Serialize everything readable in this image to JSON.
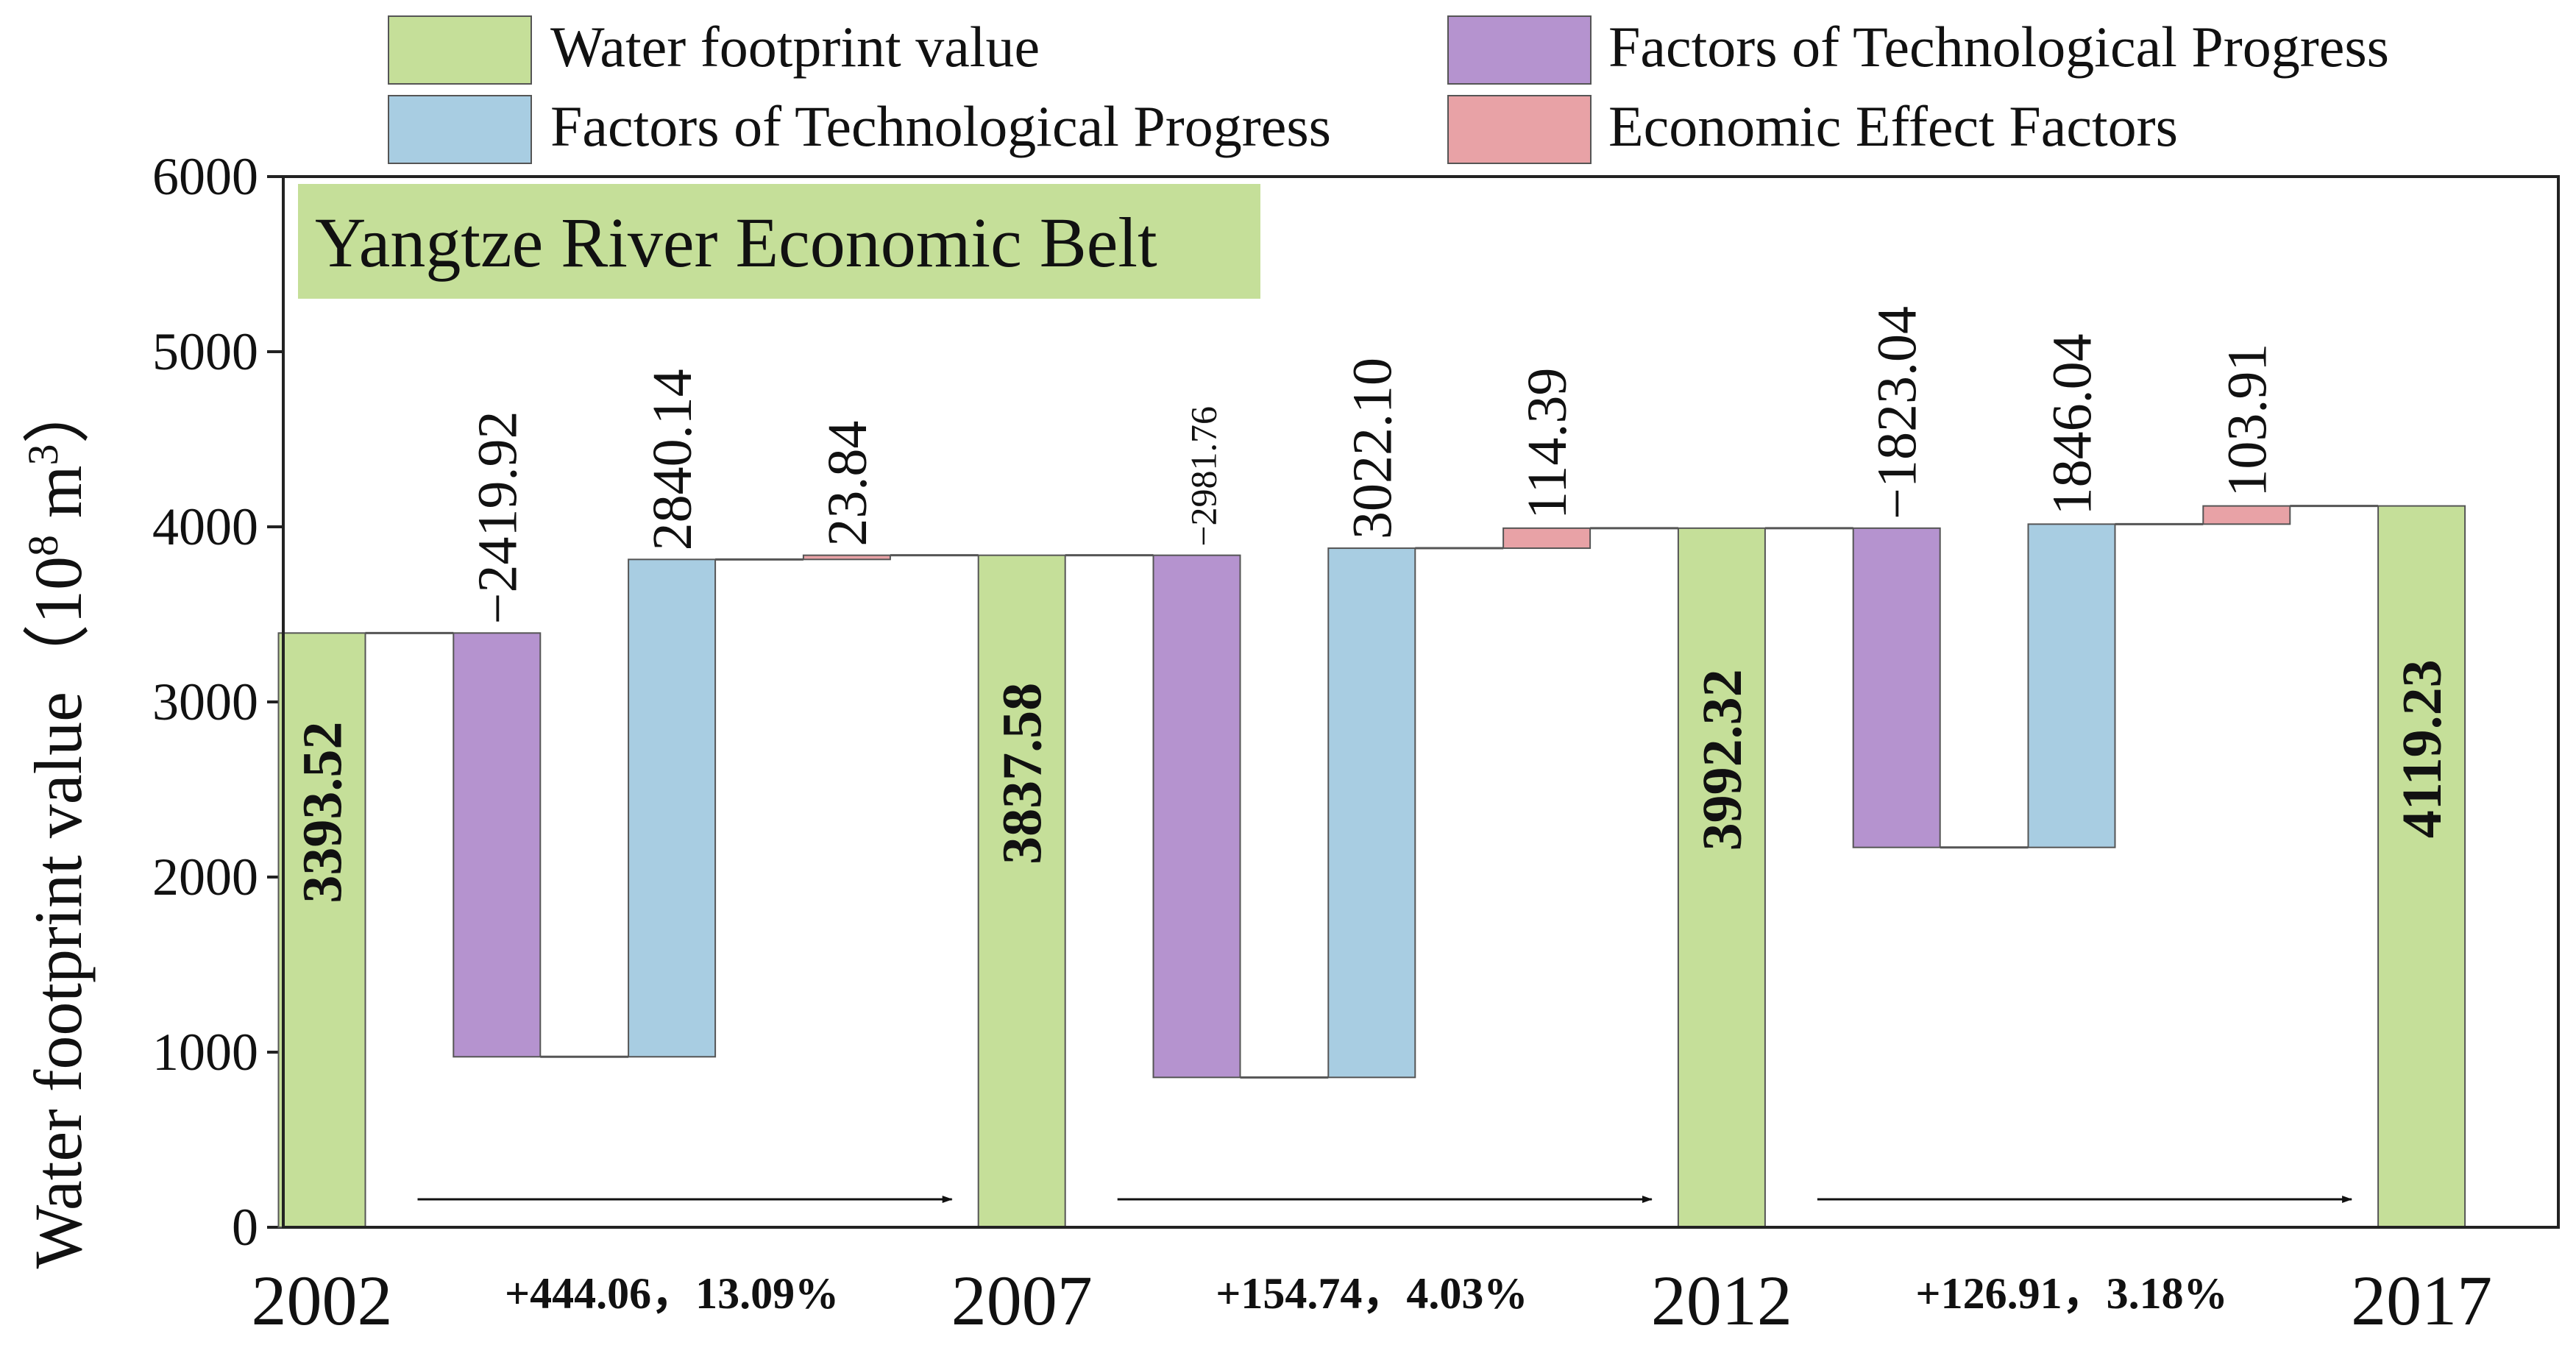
{
  "chart_data": {
    "type": "waterfall",
    "title": "Yangtze River Economic Belt",
    "ylabel": "Water footprint value",
    "yunit_prefix": "（10",
    "yunit_exp": "8",
    "yunit_mid": " m",
    "yunit_exp2": "3",
    "yunit_suffix": "）",
    "ylim": [
      0,
      6000
    ],
    "yticks": [
      0,
      1000,
      2000,
      3000,
      4000,
      5000,
      6000
    ],
    "ytick_labels": [
      "0",
      "1000",
      "2000",
      "3000",
      "4000",
      "5000",
      "6000"
    ],
    "legend": {
      "position": "top",
      "entries": [
        {
          "key": "wf",
          "label": "Water footprint value"
        },
        {
          "key": "tp1",
          "label": "Factors of Technological Progress"
        },
        {
          "key": "tp2",
          "label": "Factors of Technological Progress"
        },
        {
          "key": "econ",
          "label": "Economic Effect Factors"
        }
      ]
    },
    "colors": {
      "wf": "#c5df99",
      "tp1": "#b593cf",
      "tp2": "#a8cde2",
      "econ": "#e8a2a6",
      "stroke": "#555555",
      "title_bg": "#c5df99"
    },
    "years": [
      {
        "label": "2002",
        "value": 3393.52,
        "value_label": "3393.52"
      },
      {
        "label": "2007",
        "value": 3837.58,
        "value_label": "3837.58"
      },
      {
        "label": "2012",
        "value": 3992.32,
        "value_label": "3992.32"
      },
      {
        "label": "2017",
        "value": 4119.23,
        "value_label": "4119.23"
      }
    ],
    "periods": [
      {
        "change_label": "+444.06，13.09%",
        "factors": [
          {
            "key": "tp1",
            "value": -2419.92,
            "label": "−2419.92"
          },
          {
            "key": "tp2",
            "value": 2840.14,
            "label": "2840.14"
          },
          {
            "key": "econ",
            "value": 23.84,
            "label": "23.84"
          }
        ]
      },
      {
        "change_label": "+154.74，4.03%",
        "factors": [
          {
            "key": "tp1",
            "value": -2981.76,
            "label": "−2981.76"
          },
          {
            "key": "tp2",
            "value": 3022.1,
            "label": "3022.10"
          },
          {
            "key": "econ",
            "value": 114.39,
            "label": "114.39"
          }
        ]
      },
      {
        "change_label": "+126.91，3.18%",
        "factors": [
          {
            "key": "tp1",
            "value": -1823.04,
            "label": "−1823.04"
          },
          {
            "key": "tp2",
            "value": 1846.04,
            "label": "1846.04"
          },
          {
            "key": "econ",
            "value": 103.91,
            "label": "103.91"
          }
        ]
      }
    ]
  }
}
